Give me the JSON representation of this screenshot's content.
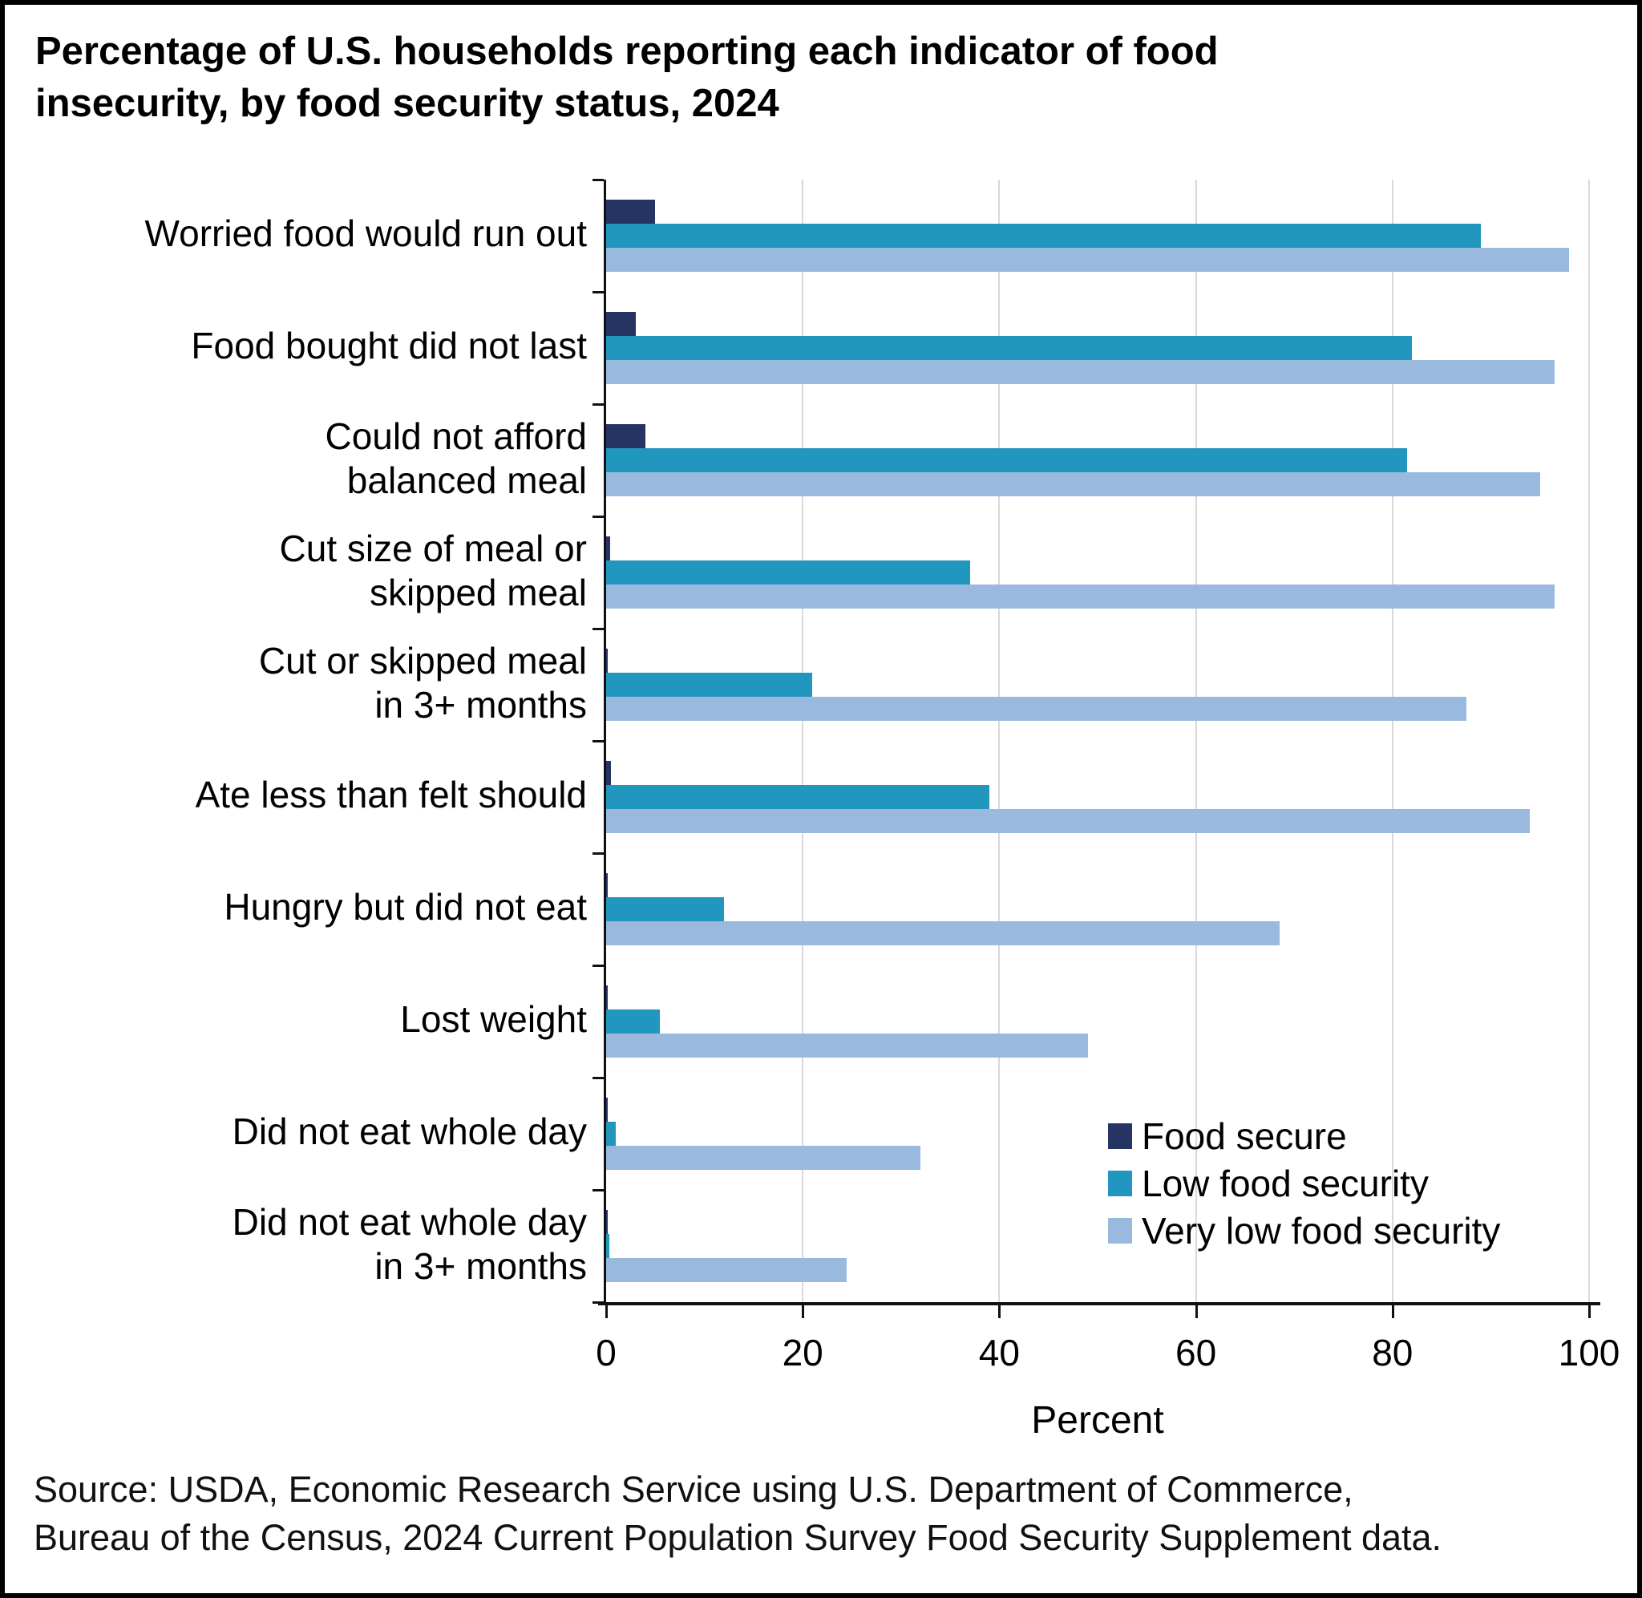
{
  "title": "Percentage of U.S. households reporting each indicator of food\ninsecurity, by food security status, 2024",
  "source": "Source: USDA, Economic Research Service using U.S. Department of Commerce,\nBureau of the Census, 2024 Current Population Survey Food Security Supplement data.",
  "colors": {
    "food_secure": "#263463",
    "low_food_security": "#2196be",
    "very_low_food_security": "#9ab9df",
    "gridline": "#d9d9d9",
    "axis": "#111111",
    "background": "#ffffff",
    "border": "#000000"
  },
  "chart_data": {
    "type": "bar",
    "orientation": "horizontal",
    "title": "Percentage of U.S. households reporting each indicator of food insecurity, by food security status, 2024",
    "xlabel": "Percent",
    "ylabel": "",
    "xlim": [
      0,
      100
    ],
    "x_ticks": [
      0,
      20,
      40,
      60,
      80,
      100
    ],
    "grid": "vertical gridlines at ticks, light gray",
    "legend_position": "inside lower right",
    "categories": [
      "Worried food would run out",
      "Food bought did not last",
      "Could not afford\nbalanced meal",
      "Cut size of meal or\nskipped meal",
      "Cut or skipped meal\nin 3+ months",
      "Ate less than felt should",
      "Hungry but did not eat",
      "Lost weight",
      "Did not eat whole day",
      "Did not eat whole day\nin 3+ months"
    ],
    "series": [
      {
        "name": "Food secure",
        "color_key": "food_secure",
        "values": [
          5,
          3,
          4,
          0.4,
          0.2,
          0.5,
          0.2,
          0.1,
          0.1,
          0.1
        ]
      },
      {
        "name": "Low food security",
        "color_key": "low_food_security",
        "values": [
          89,
          82,
          81.5,
          37,
          21,
          39,
          12,
          5.5,
          1,
          0.3
        ]
      },
      {
        "name": "Very low food security",
        "color_key": "very_low_food_security",
        "values": [
          98,
          96.5,
          95,
          96.5,
          87.5,
          94,
          68.5,
          49,
          32,
          24.5
        ]
      }
    ]
  }
}
